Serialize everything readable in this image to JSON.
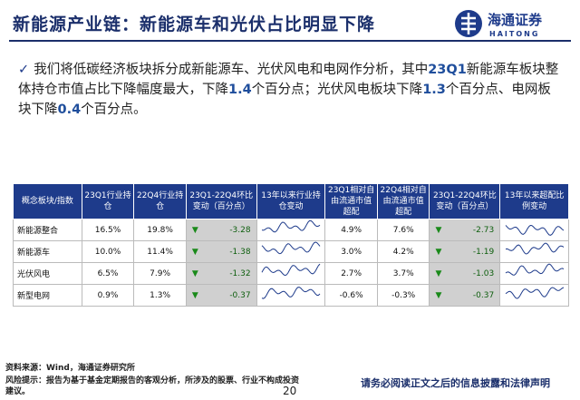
{
  "header": {
    "title": "新能源产业链：新能源车和光伏占比明显下降",
    "logo_cn": "海通证券",
    "logo_en": "HAITONG"
  },
  "bullet": {
    "segments": [
      {
        "text": "我们将低碳经济板块拆分成新能源车、光伏风电和电网作分析，其中",
        "highlight": false
      },
      {
        "text": "23Q1",
        "highlight": true
      },
      {
        "text": "新能源车板块整体持仓市值占比下降幅度最大，下降",
        "highlight": false
      },
      {
        "text": "1.4",
        "highlight": true
      },
      {
        "text": "个百分点；光伏风电板块下降",
        "highlight": false
      },
      {
        "text": "1.3",
        "highlight": true
      },
      {
        "text": "个百分点、电网板块下降",
        "highlight": false
      },
      {
        "text": "0.4",
        "highlight": true
      },
      {
        "text": "个百分点。",
        "highlight": false
      }
    ]
  },
  "table": {
    "columns": [
      "概念板块/指数",
      "23Q1行业持仓",
      "22Q4行业持仓",
      "23Q1-22Q4环比变动（百分点）",
      "13年以来行业持仓变动",
      "23Q1相对自由流通市值超配",
      "22Q4相对自由流通市值超配",
      "23Q1-22Q4环比变动（百分点）",
      "13年以来超配比例变动"
    ],
    "rows": [
      [
        "新能源整合",
        "16.5%",
        "19.8%",
        "-3.28",
        "4.9%",
        "7.6%",
        "-2.73"
      ],
      [
        "新能源车",
        "10.0%",
        "11.4%",
        "-1.38",
        "3.0%",
        "4.2%",
        "-1.19"
      ],
      [
        "光伏风电",
        "6.5%",
        "7.9%",
        "-1.32",
        "2.7%",
        "3.7%",
        "-1.03"
      ],
      [
        "新型电网",
        "0.9%",
        "1.3%",
        "-0.37",
        "-0.6%",
        "-0.3%",
        "-0.37"
      ]
    ]
  },
  "footer": {
    "source": "资料来源：Wind，海通证券研究所",
    "risk": "风险提示：报告为基于基金定期报告的客观分析，所涉及的股票、行业不构成投资建议。",
    "page": "20",
    "disclaimer": "请务必阅读正文之后的信息披露和法律声明"
  }
}
